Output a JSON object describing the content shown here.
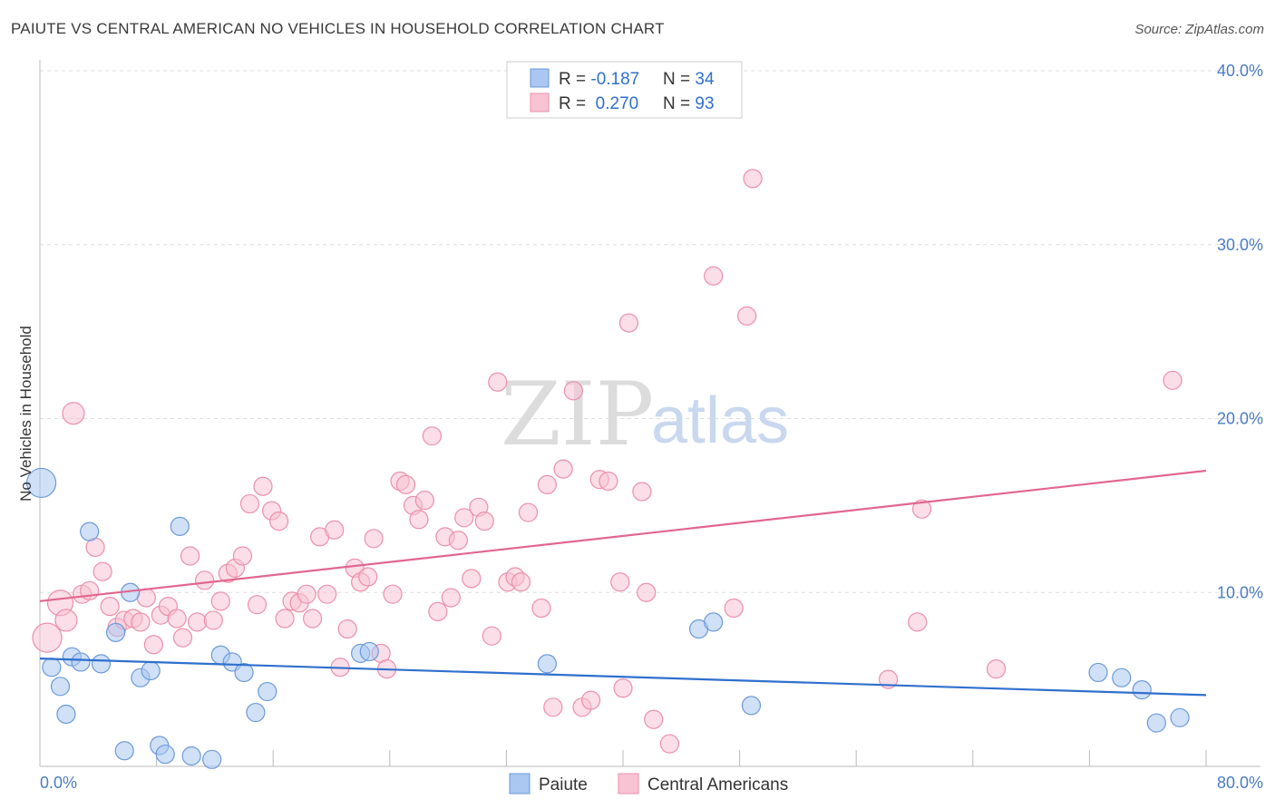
{
  "title": "PAIUTE VS CENTRAL AMERICAN NO VEHICLES IN HOUSEHOLD CORRELATION CHART",
  "source": "Source: ZipAtlas.com",
  "watermark": {
    "zip": "ZIP",
    "atlas": "atlas"
  },
  "legend": {
    "rows": [
      {
        "r_label": "R = ",
        "r_value": "-0.187",
        "n_label": "N = ",
        "n_value": "34",
        "color": "#a9c7f0"
      },
      {
        "r_label": "R = ",
        "r_value": " 0.270",
        "n_label": "N = ",
        "n_value": "93",
        "color": "#f6b6c9"
      }
    ]
  },
  "colors": {
    "paiute_fill": "#a9c7f0",
    "paiute_stroke": "#6b9ad8",
    "paiute_line": "#2f6fce",
    "central_fill": "#f8c3d3",
    "central_stroke": "#ec8fac",
    "central_line": "#e2668f",
    "grid": "#dddddd",
    "axis": "#bbbbbb"
  },
  "chart_data": {
    "type": "scatter",
    "xlabel": "",
    "ylabel": "No Vehicles in Household",
    "xlim": [
      0,
      80
    ],
    "ylim": [
      0,
      40
    ],
    "x_tick_labels": [
      "0.0%",
      "80.0%"
    ],
    "y_ticks": [
      10,
      20,
      30,
      40
    ],
    "y_tick_labels": [
      "10.0%",
      "20.0%",
      "30.0%",
      "40.0%"
    ],
    "grid": true,
    "legend_position": "top-center",
    "series": [
      {
        "name": "Paiute",
        "trend": [
          [
            0,
            6.2
          ],
          [
            80,
            4.1
          ]
        ],
        "points": [
          [
            0.1,
            16.3,
            16
          ],
          [
            0.8,
            5.7,
            10
          ],
          [
            1.4,
            4.6,
            10
          ],
          [
            1.8,
            3.0,
            10
          ],
          [
            2.2,
            6.3,
            10
          ],
          [
            2.8,
            6.0,
            10
          ],
          [
            3.4,
            13.5,
            10
          ],
          [
            4.2,
            5.9,
            10
          ],
          [
            5.2,
            7.7,
            10
          ],
          [
            5.8,
            0.9,
            10
          ],
          [
            6.2,
            10.0,
            10
          ],
          [
            6.9,
            5.1,
            10
          ],
          [
            7.6,
            5.5,
            10
          ],
          [
            8.2,
            1.2,
            10
          ],
          [
            8.6,
            0.7,
            10
          ],
          [
            9.6,
            13.8,
            10
          ],
          [
            10.4,
            0.6,
            10
          ],
          [
            11.8,
            0.4,
            10
          ],
          [
            12.4,
            6.4,
            10
          ],
          [
            13.2,
            6.0,
            10
          ],
          [
            14.0,
            5.4,
            10
          ],
          [
            14.8,
            3.1,
            10
          ],
          [
            15.6,
            4.3,
            10
          ],
          [
            22.0,
            6.5,
            10
          ],
          [
            22.6,
            6.6,
            10
          ],
          [
            34.8,
            5.9,
            10
          ],
          [
            45.2,
            7.9,
            10
          ],
          [
            46.2,
            8.3,
            10
          ],
          [
            48.8,
            3.5,
            10
          ],
          [
            72.6,
            5.4,
            10
          ],
          [
            74.2,
            5.1,
            10
          ],
          [
            75.6,
            4.4,
            10
          ],
          [
            76.6,
            2.5,
            10
          ],
          [
            78.2,
            2.8,
            10
          ]
        ]
      },
      {
        "name": "Central Americans",
        "trend": [
          [
            0,
            9.5
          ],
          [
            80,
            17.0
          ]
        ],
        "points": [
          [
            0.5,
            7.4,
            16
          ],
          [
            1.4,
            9.4,
            14
          ],
          [
            1.8,
            8.4,
            12
          ],
          [
            2.3,
            20.3,
            12
          ],
          [
            2.9,
            9.9,
            10
          ],
          [
            3.4,
            10.1,
            10
          ],
          [
            3.8,
            12.6,
            10
          ],
          [
            4.3,
            11.2,
            10
          ],
          [
            4.8,
            9.2,
            10
          ],
          [
            5.3,
            8.0,
            10
          ],
          [
            5.8,
            8.4,
            10
          ],
          [
            6.4,
            8.5,
            10
          ],
          [
            6.9,
            8.3,
            10
          ],
          [
            7.3,
            9.7,
            10
          ],
          [
            7.8,
            7.0,
            10
          ],
          [
            8.3,
            8.7,
            10
          ],
          [
            8.8,
            9.2,
            10
          ],
          [
            9.4,
            8.5,
            10
          ],
          [
            9.8,
            7.4,
            10
          ],
          [
            10.3,
            12.1,
            10
          ],
          [
            10.8,
            8.3,
            10
          ],
          [
            11.3,
            10.7,
            10
          ],
          [
            11.9,
            8.4,
            10
          ],
          [
            12.4,
            9.5,
            10
          ],
          [
            12.9,
            11.1,
            10
          ],
          [
            13.4,
            11.4,
            10
          ],
          [
            13.9,
            12.1,
            10
          ],
          [
            14.4,
            15.1,
            10
          ],
          [
            14.9,
            9.3,
            10
          ],
          [
            15.3,
            16.1,
            10
          ],
          [
            15.9,
            14.7,
            10
          ],
          [
            16.4,
            14.1,
            10
          ],
          [
            16.8,
            8.5,
            10
          ],
          [
            17.3,
            9.5,
            10
          ],
          [
            17.8,
            9.4,
            10
          ],
          [
            18.3,
            9.9,
            10
          ],
          [
            18.7,
            8.5,
            10
          ],
          [
            19.2,
            13.2,
            10
          ],
          [
            19.7,
            9.9,
            10
          ],
          [
            20.2,
            13.6,
            10
          ],
          [
            20.6,
            5.7,
            10
          ],
          [
            21.1,
            7.9,
            10
          ],
          [
            21.6,
            11.4,
            10
          ],
          [
            22.0,
            10.6,
            10
          ],
          [
            22.5,
            10.9,
            10
          ],
          [
            22.9,
            13.1,
            10
          ],
          [
            23.4,
            6.5,
            10
          ],
          [
            23.8,
            5.6,
            10
          ],
          [
            24.2,
            9.9,
            10
          ],
          [
            24.7,
            16.4,
            10
          ],
          [
            25.1,
            16.2,
            10
          ],
          [
            25.6,
            15.0,
            10
          ],
          [
            26.0,
            14.2,
            10
          ],
          [
            26.4,
            15.3,
            10
          ],
          [
            26.9,
            19.0,
            10
          ],
          [
            27.3,
            8.9,
            10
          ],
          [
            27.8,
            13.2,
            10
          ],
          [
            28.2,
            9.7,
            10
          ],
          [
            28.7,
            13.0,
            10
          ],
          [
            29.1,
            14.3,
            10
          ],
          [
            29.6,
            10.8,
            10
          ],
          [
            30.1,
            14.9,
            10
          ],
          [
            30.5,
            14.1,
            10
          ],
          [
            31.0,
            7.5,
            10
          ],
          [
            31.4,
            22.1,
            10
          ],
          [
            32.1,
            10.6,
            10
          ],
          [
            32.6,
            10.9,
            10
          ],
          [
            33.0,
            10.6,
            10
          ],
          [
            33.5,
            14.6,
            10
          ],
          [
            34.4,
            9.1,
            10
          ],
          [
            34.8,
            16.2,
            10
          ],
          [
            35.2,
            3.4,
            10
          ],
          [
            35.9,
            17.1,
            10
          ],
          [
            36.6,
            21.6,
            10
          ],
          [
            37.2,
            3.4,
            10
          ],
          [
            37.8,
            3.8,
            10
          ],
          [
            38.4,
            16.5,
            10
          ],
          [
            39.0,
            16.4,
            10
          ],
          [
            39.8,
            10.6,
            10
          ],
          [
            40.0,
            4.5,
            10
          ],
          [
            40.4,
            25.5,
            10
          ],
          [
            41.3,
            15.8,
            10
          ],
          [
            41.6,
            10.0,
            10
          ],
          [
            42.1,
            2.7,
            10
          ],
          [
            43.2,
            1.3,
            10
          ],
          [
            46.2,
            28.2,
            10
          ],
          [
            47.6,
            9.1,
            10
          ],
          [
            48.5,
            25.9,
            10
          ],
          [
            48.9,
            33.8,
            10
          ],
          [
            58.2,
            5.0,
            10
          ],
          [
            60.2,
            8.3,
            10
          ],
          [
            60.5,
            14.8,
            10
          ],
          [
            65.6,
            5.6,
            10
          ],
          [
            77.7,
            22.2,
            10
          ]
        ]
      }
    ]
  },
  "bottom_legend": [
    {
      "name": "Paiute",
      "color": "#a9c7f0"
    },
    {
      "name": "Central Americans",
      "color": "#f8c3d3"
    }
  ]
}
